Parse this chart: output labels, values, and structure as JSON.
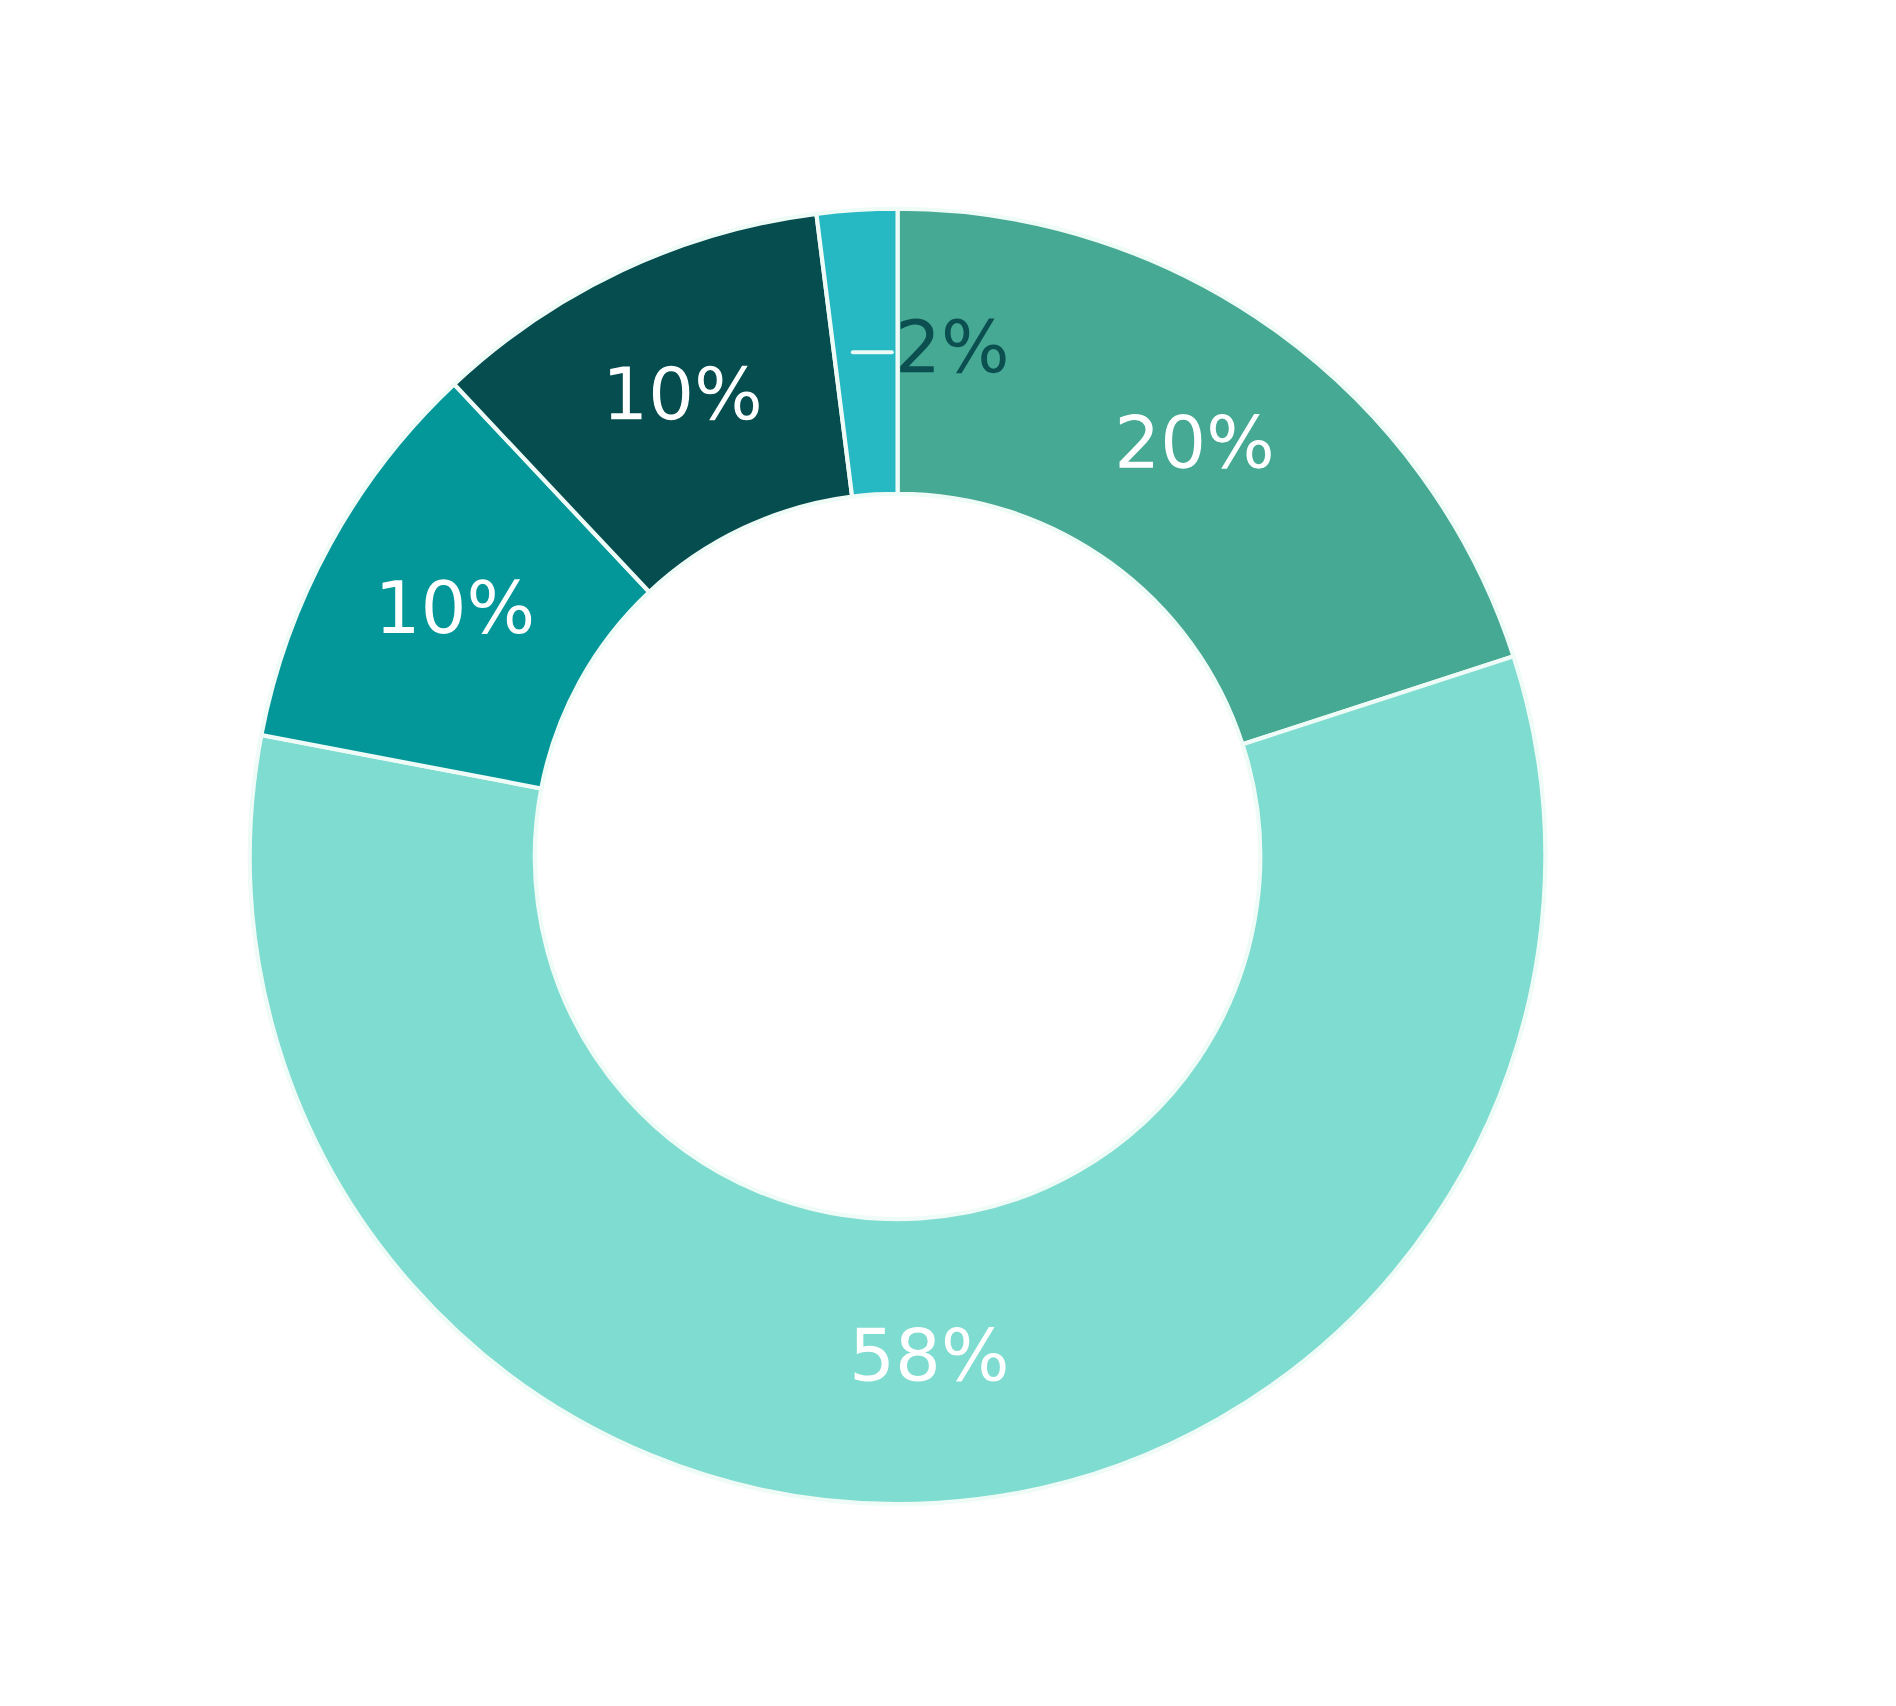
{
  "chart_data": {
    "type": "donut",
    "categories": [
      null,
      null,
      null,
      null,
      null
    ],
    "values": [
      20,
      58,
      10,
      10,
      2
    ],
    "colors": [
      "#45a994",
      "#7fdcd0",
      "#04979a",
      "#054d4f",
      "#26b9c4"
    ],
    "value_labels": [
      "20%",
      "58%",
      "10%",
      "10%",
      "2%"
    ]
  }
}
